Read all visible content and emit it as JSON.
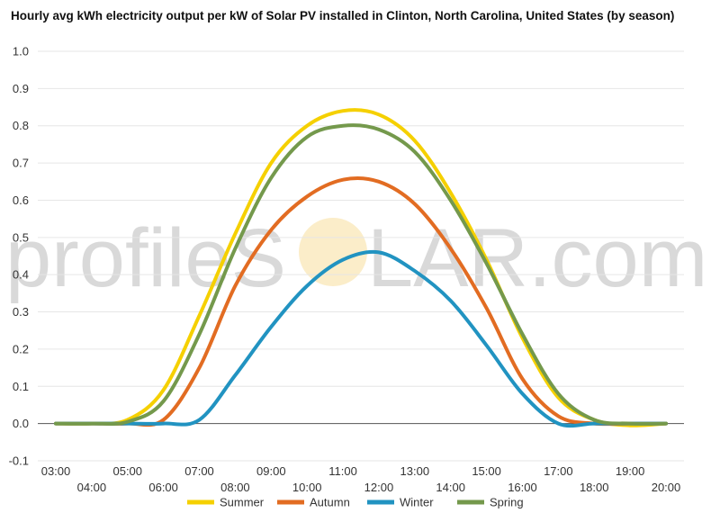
{
  "chart_data": {
    "type": "line",
    "title": "Hourly avg kWh electricity output per kW of Solar PV installed in Clinton, North Carolina, United States (by season)",
    "xlabel": "",
    "ylabel": "",
    "ylim": [
      -0.1,
      1.0
    ],
    "yticks": [
      "-0.1",
      "0.0",
      "0.1",
      "0.2",
      "0.3",
      "0.4",
      "0.5",
      "0.6",
      "0.7",
      "0.8",
      "0.9",
      "1.0"
    ],
    "x": [
      "03:00",
      "04:00",
      "05:00",
      "06:00",
      "07:00",
      "08:00",
      "09:00",
      "10:00",
      "11:00",
      "12:00",
      "13:00",
      "14:00",
      "15:00",
      "16:00",
      "17:00",
      "18:00",
      "19:00",
      "20:00"
    ],
    "grid": true,
    "legend": "bottom",
    "watermark": {
      "left": "profileS",
      "right": "LAR.com"
    },
    "series": [
      {
        "name": "Summer",
        "color": "#f5d000",
        "values": [
          0.0,
          0.0,
          0.01,
          0.09,
          0.29,
          0.51,
          0.7,
          0.8,
          0.84,
          0.83,
          0.76,
          0.62,
          0.44,
          0.23,
          0.07,
          0.01,
          -0.005,
          0.0
        ]
      },
      {
        "name": "Autumn",
        "color": "#e26c22",
        "values": [
          0.0,
          0.0,
          0.0,
          0.01,
          0.15,
          0.37,
          0.52,
          0.61,
          0.655,
          0.65,
          0.59,
          0.47,
          0.31,
          0.12,
          0.02,
          0.0,
          0.0,
          0.0
        ]
      },
      {
        "name": "Winter",
        "color": "#2193c1",
        "values": [
          0.0,
          0.0,
          0.0,
          0.0,
          0.01,
          0.13,
          0.26,
          0.37,
          0.44,
          0.46,
          0.41,
          0.33,
          0.21,
          0.08,
          0.0,
          0.0,
          0.0,
          0.0
        ]
      },
      {
        "name": "Spring",
        "color": "#74994c",
        "values": [
          0.0,
          0.0,
          0.005,
          0.06,
          0.24,
          0.47,
          0.66,
          0.77,
          0.8,
          0.79,
          0.73,
          0.6,
          0.43,
          0.24,
          0.08,
          0.01,
          0.0,
          0.0
        ]
      }
    ]
  }
}
